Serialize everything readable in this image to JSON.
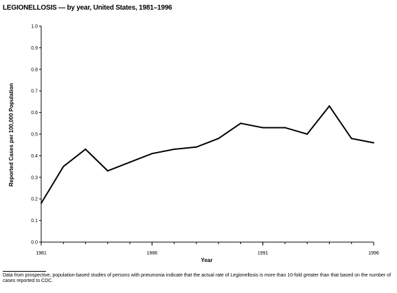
{
  "chart_data": {
    "type": "line",
    "title": "LEGIONELLOSIS — by year, United States, 1981–1996",
    "xlabel": "Year",
    "ylabel": "Reported Cases per 100,000 Population",
    "x": [
      1981,
      1982,
      1983,
      1984,
      1985,
      1986,
      1987,
      1988,
      1989,
      1990,
      1991,
      1992,
      1993,
      1994,
      1995,
      1996
    ],
    "series": [
      {
        "values": [
          0.18,
          0.35,
          0.43,
          0.33,
          0.37,
          0.41,
          0.43,
          0.44,
          0.48,
          0.55,
          0.53,
          0.53,
          0.5,
          0.63,
          0.48,
          0.46
        ]
      }
    ],
    "xlim": [
      1981,
      1996
    ],
    "ylim": [
      0,
      1.0
    ],
    "x_ticks": [
      "1981",
      "1986",
      "1991",
      "1996"
    ],
    "y_ticks": [
      "0.0",
      "0.1",
      "0.2",
      "0.3",
      "0.4",
      "0.5",
      "0.6",
      "0.7",
      "0.8",
      "0.9",
      "1.0"
    ],
    "grid": false,
    "line_color": "#000000"
  },
  "footnote": "Data from prospective, population-based studies of persons with pneumonia indicate that the actual rate of Legionellosis is more than 10-fold greater than that based on the number of cases reported to CDC."
}
